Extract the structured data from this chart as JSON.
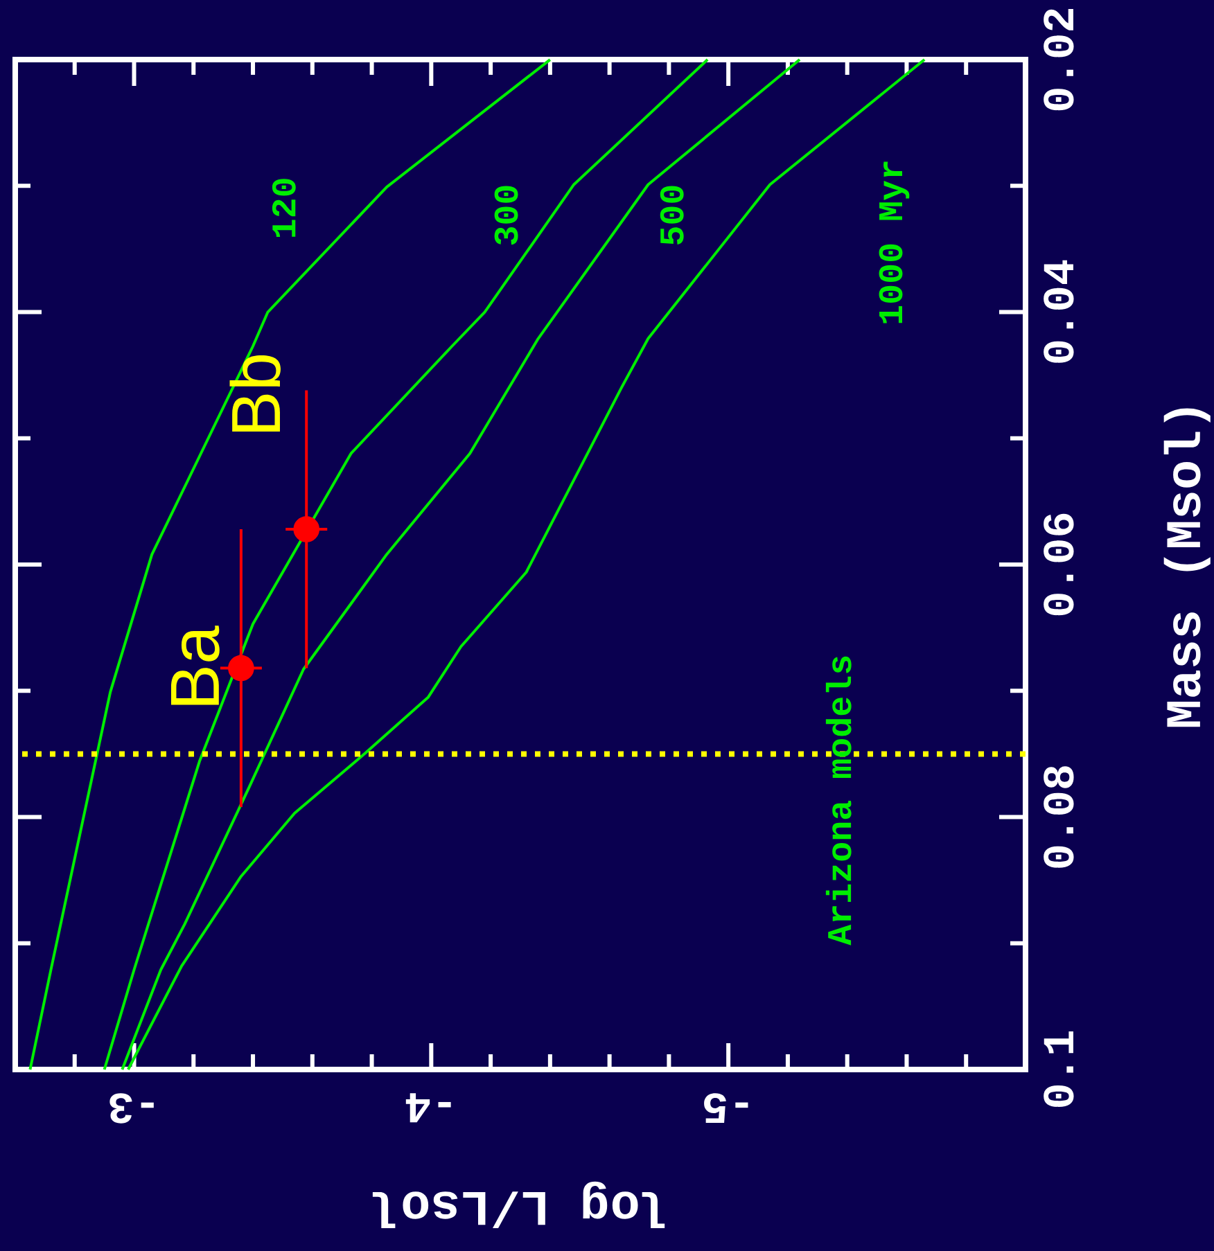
{
  "chart_data": {
    "type": "line",
    "xlabel": "log L/Lsol",
    "ylabel": "Mass (Msol)",
    "xlim": [
      -2.6,
      -6
    ],
    "ylim": [
      0.1,
      0.02
    ],
    "yticks": [
      {
        "value": 0.1,
        "label": "0.1"
      },
      {
        "value": 0.09,
        "label": null
      },
      {
        "value": 0.08,
        "label": "0.08"
      },
      {
        "value": 0.07,
        "label": null
      },
      {
        "value": 0.06,
        "label": "0.06"
      },
      {
        "value": 0.05,
        "label": null
      },
      {
        "value": 0.04,
        "label": "0.04"
      },
      {
        "value": 0.03,
        "label": null
      },
      {
        "value": 0.02,
        "label": "0.02"
      }
    ],
    "xticks": [
      {
        "value": -5.8,
        "label": null
      },
      {
        "value": -5.6,
        "label": null
      },
      {
        "value": -5.4,
        "label": null
      },
      {
        "value": -5.2,
        "label": null
      },
      {
        "value": -5,
        "label": "-5"
      },
      {
        "value": -4.8,
        "label": null
      },
      {
        "value": -4.6,
        "label": null
      },
      {
        "value": -4.4,
        "label": null
      },
      {
        "value": -4.2,
        "label": null
      },
      {
        "value": -4,
        "label": "-4"
      },
      {
        "value": -3.8,
        "label": null
      },
      {
        "value": -3.6,
        "label": null
      },
      {
        "value": -3.4,
        "label": null
      },
      {
        "value": -3.2,
        "label": null
      },
      {
        "value": -3,
        "label": "-3"
      },
      {
        "value": -2.8,
        "label": null
      }
    ],
    "series": [
      {
        "name": "120",
        "color": "#00ee00",
        "values": [
          0.1,
          0.0921,
          0.0701,
          0.0592,
          0.0427,
          0.04,
          0.0301,
          0.02
        ],
        "x": [
          -2.65,
          -2.72,
          -2.92,
          -3.06,
          -3.4,
          -3.45,
          -3.85,
          -4.4
        ]
      },
      {
        "name": "300",
        "color": "#00ee00",
        "values": [
          0.1,
          0.0921,
          0.0756,
          0.0647,
          0.0512,
          0.0427,
          0.04,
          0.0299,
          0.02
        ],
        "x": [
          -2.9,
          -3.0,
          -3.22,
          -3.4,
          -3.73,
          -4.07,
          -4.18,
          -4.48,
          -4.93
        ]
      },
      {
        "name": "500",
        "color": "#00ee00",
        "values": [
          0.1,
          0.0921,
          0.0885,
          0.0775,
          0.0683,
          0.0592,
          0.0512,
          0.0421,
          0.0299,
          0.02
        ],
        "x": [
          -2.96,
          -3.09,
          -3.17,
          -3.39,
          -3.57,
          -3.85,
          -4.13,
          -4.36,
          -4.73,
          -5.24
        ]
      },
      {
        "name": "1000 Myr",
        "color": "#00ee00",
        "values": [
          0.1,
          0.0918,
          0.0847,
          0.0797,
          0.0749,
          0.0705,
          0.0665,
          0.0606,
          0.046,
          0.0421,
          0.0299,
          0.02
        ],
        "x": [
          -2.98,
          -3.16,
          -3.36,
          -3.54,
          -3.78,
          -3.99,
          -4.1,
          -4.32,
          -4.64,
          -4.73,
          -5.14,
          -5.66
        ]
      },
      {
        "type": "scatter",
        "color": "#ff0000",
        "x": [
          -3.36,
          -3.58
        ],
        "values": [
          0.0682,
          0.0572
        ],
        "xerrors": [
          0.07,
          0.07
        ],
        "errors": [
          0.011,
          0.011
        ]
      }
    ],
    "ref_lines": [
      {
        "axis": "y",
        "value": 0.075,
        "color": "#ffff00",
        "line_style": "dotted"
      }
    ],
    "annotations": [
      {
        "text": "Ba",
        "x": -3.36,
        "y": 0.0682
      },
      {
        "text": "Bb",
        "x": -3.58,
        "y": 0.0572
      },
      "Arizona models"
    ]
  }
}
